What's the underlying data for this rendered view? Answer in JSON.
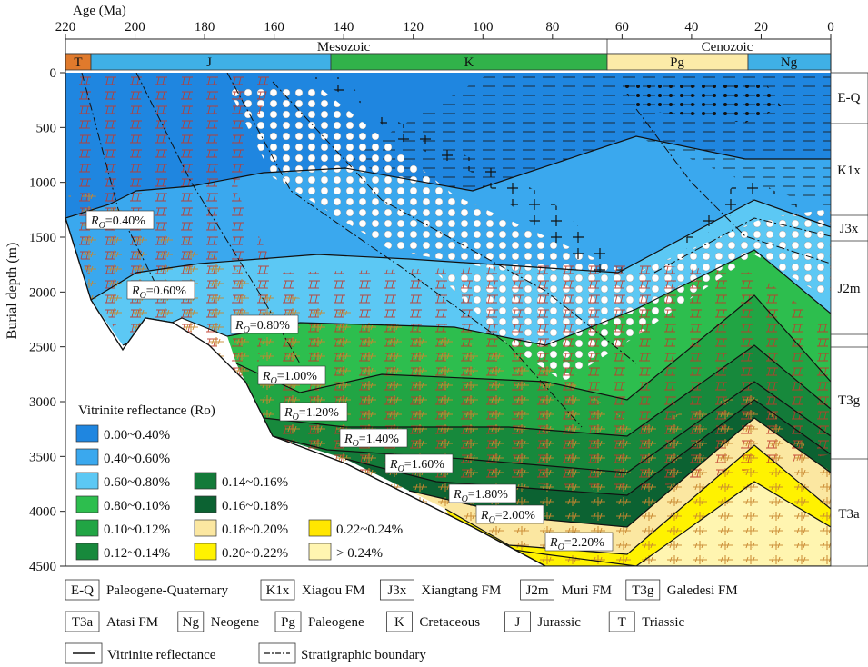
{
  "axes": {
    "x_title": "Age (Ma)",
    "x_ticks": [
      "220",
      "200",
      "180",
      "160",
      "140",
      "120",
      "100",
      "80",
      "60",
      "40",
      "20",
      "0"
    ],
    "y_title": "Burial depth (m)",
    "y_ticks": [
      "0",
      "500",
      "1000",
      "1500",
      "2000",
      "2500",
      "3000",
      "3500",
      "4000",
      "4500"
    ]
  },
  "eras": {
    "mesozoic": "Mesozoic",
    "cenozoic": "Cenozoic"
  },
  "periods": [
    {
      "code": "T",
      "color": "#E07A2C"
    },
    {
      "code": "J",
      "color": "#3FB0E6"
    },
    {
      "code": "K",
      "color": "#31B24A"
    },
    {
      "code": "Pg",
      "color": "#FCEBA8"
    },
    {
      "code": "Ng",
      "color": "#3FB0E6"
    }
  ],
  "formations": [
    {
      "code": "E-Q"
    },
    {
      "code": "K1x"
    },
    {
      "code": "J3x"
    },
    {
      "code": "J2m"
    },
    {
      "code": "T3g"
    },
    {
      "code": "T3a"
    }
  ],
  "ro_labels": [
    "0.40%",
    "0.60%",
    "0.80%",
    "1.00%",
    "1.20%",
    "1.40%",
    "1.60%",
    "1.80%",
    "2.00%",
    "2.20%"
  ],
  "legend": {
    "title": "Vitrinite reflectance (Ro)",
    "items": [
      {
        "label": "0.00~0.40%",
        "color": "#1F86E0"
      },
      {
        "label": "0.40~0.60%",
        "color": "#3AA8EE"
      },
      {
        "label": "0.60~0.80%",
        "color": "#5CC8F4"
      },
      {
        "label": "0.80~0.10%",
        "color": "#2DBE4E"
      },
      {
        "label": "0.10~0.12%",
        "color": "#21A544"
      },
      {
        "label": "0.12~0.14%",
        "color": "#17893C"
      },
      {
        "label": "0.14~0.16%",
        "color": "#137A39"
      },
      {
        "label": "0.16~0.18%",
        "color": "#0C6232"
      },
      {
        "label": "0.18~0.20%",
        "color": "#FBE7A1"
      },
      {
        "label": "0.20~0.22%",
        "color": "#FFF200"
      },
      {
        "label": "0.22~0.24%",
        "color": "#FFE600"
      },
      {
        "label": "> 0.24%",
        "color": "#FFF5B0"
      }
    ]
  },
  "bottom_legend": {
    "row1": [
      {
        "code": "E-Q",
        "name": "Paleogene-Quaternary"
      },
      {
        "code": "K1x",
        "name": "Xiagou FM"
      },
      {
        "code": "J3x",
        "name": "Xiangtang FM"
      },
      {
        "code": "J2m",
        "name": "Muri FM"
      },
      {
        "code": "T3g",
        "name": "Galedesi FM"
      }
    ],
    "row2": [
      {
        "code": "T3a",
        "name": "Atasi FM"
      },
      {
        "code": "Ng",
        "name": "Neogene"
      },
      {
        "code": "Pg",
        "name": "Paleogene"
      },
      {
        "code": "K",
        "name": "Cretaceous"
      },
      {
        "code": "J",
        "name": "Jurassic"
      },
      {
        "code": "T",
        "name": "Triassic"
      }
    ],
    "row3": [
      {
        "name": "Vitrinite reflectance"
      },
      {
        "name": "Stratigraphic boundary"
      }
    ]
  }
}
